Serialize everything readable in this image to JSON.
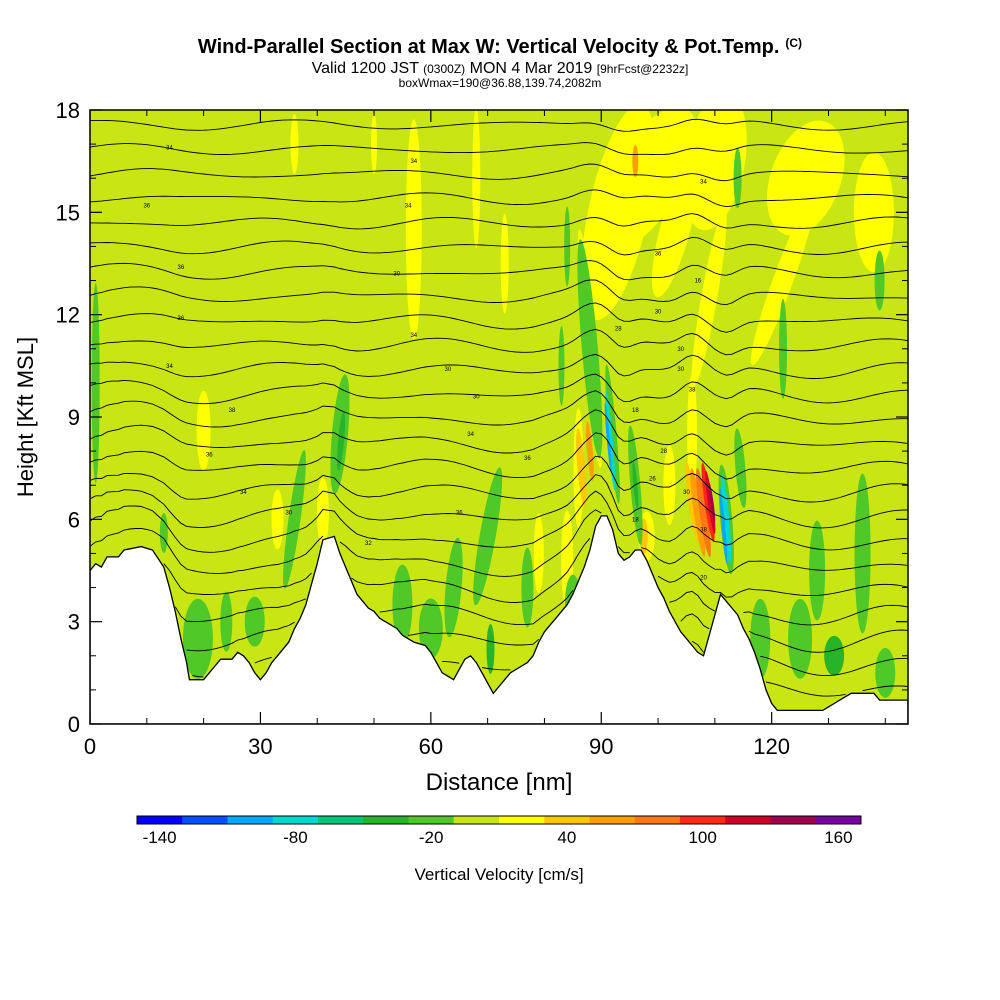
{
  "title": {
    "main": "Wind-Parallel Section at Max W: Vertical Velocity & Pot.Temp.",
    "copyright": "(C)",
    "valid_prefix": "Valid 1200 JST",
    "valid_utc": "(0300Z)",
    "valid_date": "MON 4 Mar 2019",
    "forecast": "[9hrFcst@2232z]",
    "box_info": "boxWmax=190@36.88,139.74,2082m"
  },
  "chart_data": {
    "type": "heatmap",
    "xlabel": "Distance [nm]",
    "ylabel": "Height [Kft MSL]",
    "xlim": [
      0,
      144
    ],
    "ylim": [
      0,
      18
    ],
    "x_ticks": [
      0,
      30,
      60,
      90,
      120
    ],
    "y_ticks": [
      0,
      3,
      6,
      9,
      12,
      15,
      18
    ],
    "terrain": [
      [
        0,
        4.5
      ],
      [
        1,
        4.7
      ],
      [
        2,
        4.6
      ],
      [
        3,
        4.9
      ],
      [
        5,
        4.9
      ],
      [
        6,
        5.1
      ],
      [
        9,
        5.2
      ],
      [
        11,
        5.1
      ],
      [
        13,
        4.6
      ],
      [
        14,
        4.0
      ],
      [
        15,
        3.3
      ],
      [
        16,
        2.5
      ],
      [
        17,
        1.8
      ],
      [
        17.5,
        1.3
      ],
      [
        20,
        1.3
      ],
      [
        21,
        1.5
      ],
      [
        22,
        1.7
      ],
      [
        23,
        1.9
      ],
      [
        25,
        1.9
      ],
      [
        26,
        2.1
      ],
      [
        27,
        2.0
      ],
      [
        28,
        1.8
      ],
      [
        29,
        1.5
      ],
      [
        30,
        1.3
      ],
      [
        31,
        1.5
      ],
      [
        32,
        1.8
      ],
      [
        33,
        2.0
      ],
      [
        35,
        2.4
      ],
      [
        36,
        2.8
      ],
      [
        37,
        3.1
      ],
      [
        38,
        3.5
      ],
      [
        39,
        4.1
      ],
      [
        40,
        4.7
      ],
      [
        41,
        5.4
      ],
      [
        43,
        5.5
      ],
      [
        44,
        5.0
      ],
      [
        45,
        4.6
      ],
      [
        46,
        4.2
      ],
      [
        47,
        3.8
      ],
      [
        48,
        3.6
      ],
      [
        49,
        3.4
      ],
      [
        50,
        3.3
      ],
      [
        51,
        3.1
      ],
      [
        52,
        3.0
      ],
      [
        53,
        2.9
      ],
      [
        54,
        2.8
      ],
      [
        55,
        2.6
      ],
      [
        56,
        2.5
      ],
      [
        57,
        2.4
      ],
      [
        59,
        2.3
      ],
      [
        60,
        2.1
      ],
      [
        61,
        1.8
      ],
      [
        62,
        1.5
      ],
      [
        63,
        1.4
      ],
      [
        64,
        1.3
      ],
      [
        65,
        1.6
      ],
      [
        66,
        1.9
      ],
      [
        67,
        2.0
      ],
      [
        68,
        1.8
      ],
      [
        69,
        1.5
      ],
      [
        70,
        1.2
      ],
      [
        71,
        0.9
      ],
      [
        72,
        1.1
      ],
      [
        73,
        1.3
      ],
      [
        74,
        1.5
      ],
      [
        75,
        1.6
      ],
      [
        76,
        1.7
      ],
      [
        77,
        1.8
      ],
      [
        78,
        2.0
      ],
      [
        79,
        2.4
      ],
      [
        80,
        2.7
      ],
      [
        81,
        2.9
      ],
      [
        82,
        3.1
      ],
      [
        83,
        3.3
      ],
      [
        84,
        3.5
      ],
      [
        85,
        3.8
      ],
      [
        86,
        4.2
      ],
      [
        87,
        4.6
      ],
      [
        88,
        5.1
      ],
      [
        89,
        5.8
      ],
      [
        90,
        6.1
      ],
      [
        91,
        6.1
      ],
      [
        92,
        5.7
      ],
      [
        93,
        5.0
      ],
      [
        94,
        4.8
      ],
      [
        95,
        4.9
      ],
      [
        96,
        5.1
      ],
      [
        97,
        5.1
      ],
      [
        98,
        4.8
      ],
      [
        99,
        4.4
      ],
      [
        100,
        4.0
      ],
      [
        101,
        3.7
      ],
      [
        102,
        3.3
      ],
      [
        103,
        3.0
      ],
      [
        104,
        2.7
      ],
      [
        105,
        2.5
      ],
      [
        106,
        2.3
      ],
      [
        107,
        2.1
      ],
      [
        108,
        2.0
      ],
      [
        109,
        2.6
      ],
      [
        110,
        3.2
      ],
      [
        111,
        3.8
      ],
      [
        112,
        3.6
      ],
      [
        113,
        3.4
      ],
      [
        114,
        3.2
      ],
      [
        115,
        2.8
      ],
      [
        116,
        2.5
      ],
      [
        117,
        2.1
      ],
      [
        118,
        1.6
      ],
      [
        119,
        1.0
      ],
      [
        120,
        0.6
      ],
      [
        121,
        0.4
      ],
      [
        129,
        0.4
      ],
      [
        130,
        0.5
      ],
      [
        131,
        0.6
      ],
      [
        132,
        0.7
      ],
      [
        134,
        0.9
      ],
      [
        138,
        0.9
      ],
      [
        139,
        0.7
      ],
      [
        144,
        0.7
      ]
    ],
    "theta_labels": [
      "34",
      "34",
      "36",
      "34",
      "36",
      "30",
      "36",
      "34",
      "34",
      "30",
      "38",
      "30",
      "36",
      "34",
      "34",
      "36",
      "30",
      "32",
      "36",
      "18",
      "18",
      "28",
      "30",
      "30",
      "38",
      "38",
      "28",
      "30",
      "36",
      "34",
      "16",
      "30",
      "26",
      "20"
    ],
    "colorbar": {
      "label": "Vertical Velocity [cm/s]",
      "tick_labels": [
        "-140",
        "-80",
        "-20",
        "40",
        "100",
        "160"
      ],
      "tick_values": [
        -140,
        -80,
        -20,
        40,
        100,
        160
      ],
      "min": -150,
      "step": 20,
      "colors": [
        "#0000ff",
        "#0050ff",
        "#00a8ff",
        "#00d8d0",
        "#00c878",
        "#28b428",
        "#50c828",
        "#c8e614",
        "#ffff00",
        "#ffc800",
        "#ffa000",
        "#ff7814",
        "#ff2814",
        "#d00028",
        "#a00050",
        "#7800a0"
      ]
    }
  }
}
